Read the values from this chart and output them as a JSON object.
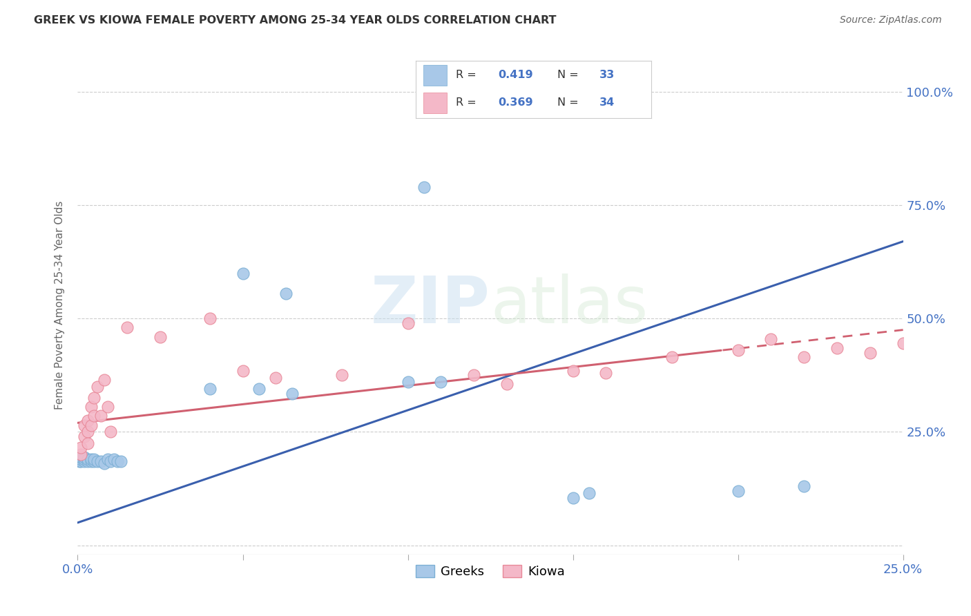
{
  "title": "GREEK VS KIOWA FEMALE POVERTY AMONG 25-34 YEAR OLDS CORRELATION CHART",
  "source": "Source: ZipAtlas.com",
  "ylabel": "Female Poverty Among 25-34 Year Olds",
  "xlim": [
    0.0,
    0.25
  ],
  "ylim": [
    -0.02,
    1.08
  ],
  "greek_color": "#a8c8e8",
  "greek_edge_color": "#7bafd4",
  "kiowa_color": "#f4b8c8",
  "kiowa_edge_color": "#e88898",
  "greek_line_color": "#3a5fad",
  "kiowa_line_color": "#d06070",
  "legend_R_greek": "0.419",
  "legend_N_greek": "33",
  "legend_R_kiowa": "0.369",
  "legend_N_kiowa": "34",
  "watermark": "ZIPatlas",
  "background_color": "#ffffff",
  "greek_scatter_x": [
    0.0005,
    0.001,
    0.001,
    0.001,
    0.002,
    0.002,
    0.002,
    0.003,
    0.003,
    0.004,
    0.004,
    0.005,
    0.005,
    0.006,
    0.007,
    0.008,
    0.009,
    0.01,
    0.011,
    0.012,
    0.013,
    0.04,
    0.05,
    0.055,
    0.063,
    0.065,
    0.1,
    0.105,
    0.11,
    0.15,
    0.155,
    0.2,
    0.22
  ],
  "greek_scatter_y": [
    0.185,
    0.185,
    0.19,
    0.195,
    0.185,
    0.19,
    0.195,
    0.185,
    0.19,
    0.185,
    0.19,
    0.185,
    0.19,
    0.185,
    0.185,
    0.18,
    0.19,
    0.185,
    0.19,
    0.185,
    0.185,
    0.345,
    0.6,
    0.345,
    0.555,
    0.335,
    0.36,
    0.79,
    0.36,
    0.105,
    0.115,
    0.12,
    0.13
  ],
  "kiowa_scatter_x": [
    0.001,
    0.001,
    0.002,
    0.002,
    0.003,
    0.003,
    0.003,
    0.004,
    0.004,
    0.005,
    0.005,
    0.006,
    0.007,
    0.008,
    0.009,
    0.01,
    0.015,
    0.025,
    0.04,
    0.05,
    0.06,
    0.08,
    0.1,
    0.12,
    0.13,
    0.15,
    0.16,
    0.18,
    0.2,
    0.21,
    0.22,
    0.23,
    0.24,
    0.25
  ],
  "kiowa_scatter_y": [
    0.2,
    0.215,
    0.24,
    0.265,
    0.25,
    0.275,
    0.225,
    0.265,
    0.305,
    0.285,
    0.325,
    0.35,
    0.285,
    0.365,
    0.305,
    0.25,
    0.48,
    0.46,
    0.5,
    0.385,
    0.37,
    0.375,
    0.49,
    0.375,
    0.355,
    0.385,
    0.38,
    0.415,
    0.43,
    0.455,
    0.415,
    0.435,
    0.425,
    0.445
  ]
}
